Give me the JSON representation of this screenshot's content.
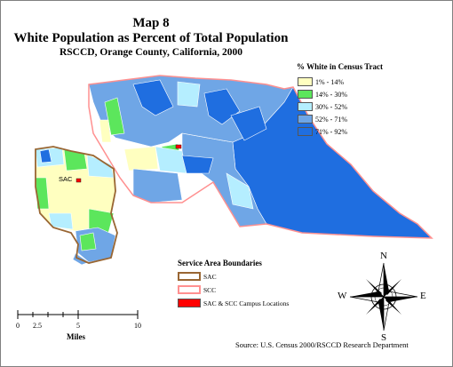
{
  "title": "Map 8",
  "subtitle": "White Population as Percent of Total Population",
  "subsubtitle": "RSCCD, Orange County, California, 2000",
  "legend": {
    "title": "% White in Census Tract",
    "classes": [
      {
        "label": "1% - 14%",
        "color": "#ffffc0"
      },
      {
        "label": "14% - 30%",
        "color": "#5ce65c"
      },
      {
        "label": "30% - 52%",
        "color": "#b5eeff"
      },
      {
        "label": "52% - 71%",
        "color": "#6fa6e6"
      },
      {
        "label": "71% - 92%",
        "color": "#1f6ee0"
      }
    ]
  },
  "service_area": {
    "title": "Service Area Boundaries",
    "items": [
      {
        "label": "SAC",
        "color": "#996633"
      },
      {
        "label": "SCC",
        "color": "#ff9090"
      },
      {
        "label": "SAC & SCC Campus Locations",
        "color": "#ff0000"
      }
    ]
  },
  "map_labels": {
    "sac": "SAC"
  },
  "scale_bar": {
    "ticks": [
      "0",
      "2.5",
      "5",
      "10"
    ],
    "units": "Miles"
  },
  "compass": {
    "n": "N",
    "s": "S",
    "e": "E",
    "w": "W"
  },
  "source": "Source: U.S. Census 2000/RSCCD Research Department"
}
